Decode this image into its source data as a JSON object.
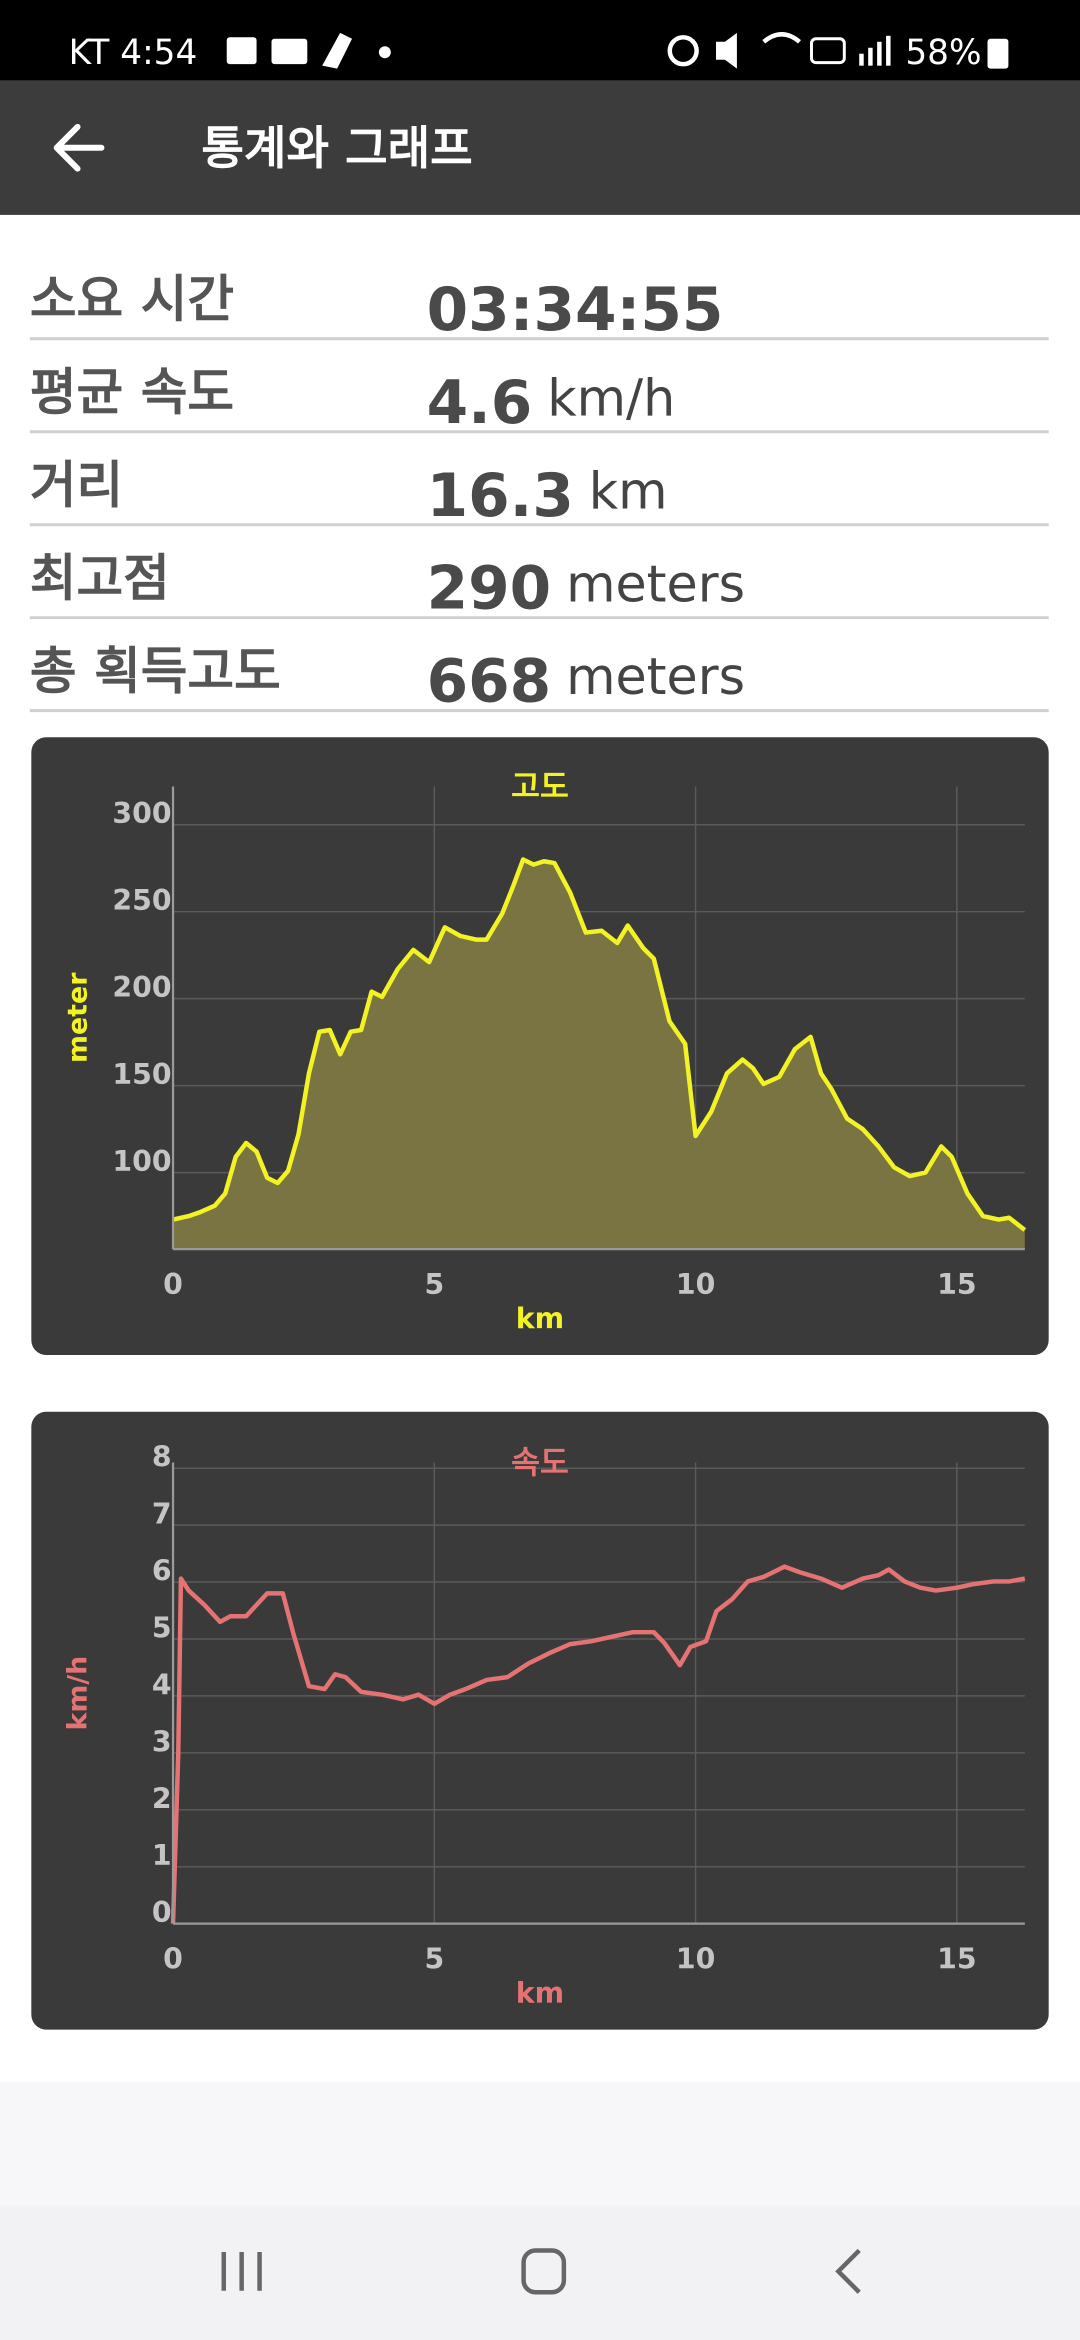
{
  "status_bar": {
    "carrier_time": "KT 4:54",
    "battery": "58%"
  },
  "app_bar": {
    "title": "통계와 그래프"
  },
  "stats": [
    {
      "label": "소요 시간",
      "value": "03:34:55"
    },
    {
      "label": "평균 속도",
      "value": "4.6",
      "unit": "km/h"
    },
    {
      "label": "거리",
      "value": "16.3",
      "unit": "km"
    },
    {
      "label": "최고점",
      "value": "290",
      "unit": "meters"
    },
    {
      "label": "총 획득고도",
      "value": "668",
      "unit": "meters"
    }
  ],
  "chart_data": [
    {
      "type": "area",
      "title": "고도",
      "xlabel": "km",
      "ylabel": "meter",
      "color": "#f2f224",
      "fill_color": "#7a7443",
      "grid": true,
      "xlim": [
        0,
        16.3
      ],
      "ylim": [
        56,
        322
      ],
      "xticks": [
        0,
        5,
        10,
        15
      ],
      "yticks": [
        100,
        150,
        200,
        250,
        300
      ],
      "x": [
        0,
        0.3,
        0.5,
        0.8,
        1.0,
        1.2,
        1.4,
        1.6,
        1.8,
        2.0,
        2.2,
        2.4,
        2.6,
        2.8,
        3.0,
        3.2,
        3.4,
        3.6,
        3.8,
        4.0,
        4.3,
        4.6,
        4.9,
        5.2,
        5.5,
        5.8,
        6.0,
        6.3,
        6.5,
        6.7,
        6.9,
        7.1,
        7.3,
        7.6,
        7.9,
        8.2,
        8.5,
        8.7,
        9.0,
        9.2,
        9.5,
        9.8,
        10.0,
        10.3,
        10.6,
        10.9,
        11.1,
        11.3,
        11.6,
        11.9,
        12.2,
        12.4,
        12.6,
        12.9,
        13.2,
        13.5,
        13.8,
        14.1,
        14.4,
        14.7,
        14.9,
        15.2,
        15.5,
        15.8,
        16.0,
        16.3
      ],
      "values": [
        73,
        75,
        77,
        81,
        88,
        109,
        117,
        112,
        97,
        94,
        101,
        122,
        157,
        181,
        182,
        168,
        181,
        182,
        204,
        201,
        217,
        228,
        221,
        241,
        236,
        234,
        234,
        249,
        264,
        280,
        277,
        279,
        278,
        261,
        238,
        239,
        232,
        242,
        229,
        223,
        187,
        174,
        121,
        135,
        157,
        165,
        160,
        151,
        155,
        171,
        178,
        157,
        148,
        131,
        125,
        115,
        103,
        98,
        100,
        115,
        109,
        88,
        75,
        73,
        74,
        67
      ]
    },
    {
      "type": "line",
      "title": "속도",
      "xlabel": "km",
      "ylabel": "km/h",
      "color": "#e57373",
      "grid": true,
      "xlim": [
        0,
        16.3
      ],
      "ylim": [
        0,
        8.1
      ],
      "xticks": [
        0,
        5,
        10,
        15
      ],
      "yticks": [
        0,
        1,
        2,
        3,
        4,
        5,
        6,
        7,
        8
      ],
      "x": [
        0,
        0.1,
        0.15,
        0.3,
        0.6,
        0.9,
        1.1,
        1.4,
        1.6,
        1.8,
        2.1,
        2.3,
        2.6,
        2.9,
        3.1,
        3.3,
        3.6,
        4.0,
        4.4,
        4.7,
        5.0,
        5.3,
        5.6,
        6.0,
        6.4,
        6.8,
        7.2,
        7.6,
        8.0,
        8.4,
        8.8,
        9.2,
        9.4,
        9.7,
        9.9,
        10.2,
        10.4,
        10.7,
        11.0,
        11.3,
        11.7,
        12.0,
        12.4,
        12.8,
        13.2,
        13.5,
        13.7,
        14.0,
        14.3,
        14.6,
        15.0,
        15.3,
        15.7,
        16.0,
        16.3
      ],
      "values": [
        0,
        3.0,
        6.06,
        5.85,
        5.6,
        5.3,
        5.4,
        5.4,
        5.6,
        5.8,
        5.8,
        5.1,
        4.17,
        4.12,
        4.38,
        4.33,
        4.07,
        4.02,
        3.94,
        4.02,
        3.86,
        4.02,
        4.12,
        4.28,
        4.33,
        4.57,
        4.75,
        4.91,
        4.96,
        5.04,
        5.12,
        5.12,
        4.93,
        4.54,
        4.86,
        4.96,
        5.49,
        5.7,
        6.01,
        6.09,
        6.27,
        6.17,
        6.06,
        5.9,
        6.06,
        6.12,
        6.22,
        6.01,
        5.9,
        5.85,
        5.9,
        5.96,
        6.01,
        6.01,
        6.06
      ]
    }
  ]
}
